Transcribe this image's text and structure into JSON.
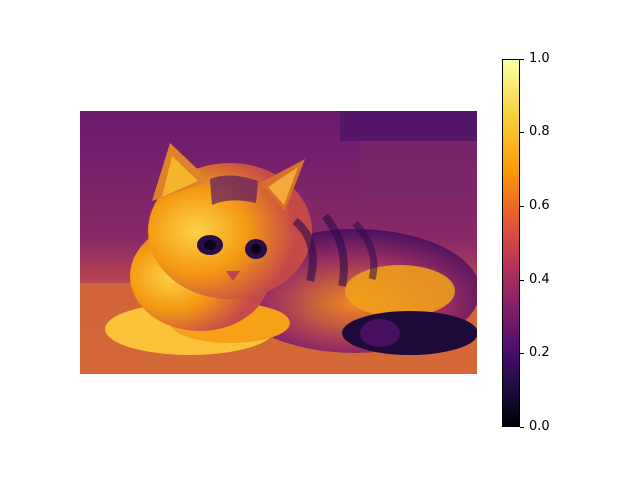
{
  "image": {
    "subject": "kitten lying on ground",
    "colormap": "inferno"
  },
  "colorbar": {
    "ticks": [
      "0.0",
      "0.2",
      "0.4",
      "0.6",
      "0.8",
      "1.0"
    ]
  },
  "colors": {
    "background": "#ffffff",
    "colormap_low": "#000004",
    "colormap_mid": "#cf4446",
    "colormap_high": "#fcffa4"
  }
}
